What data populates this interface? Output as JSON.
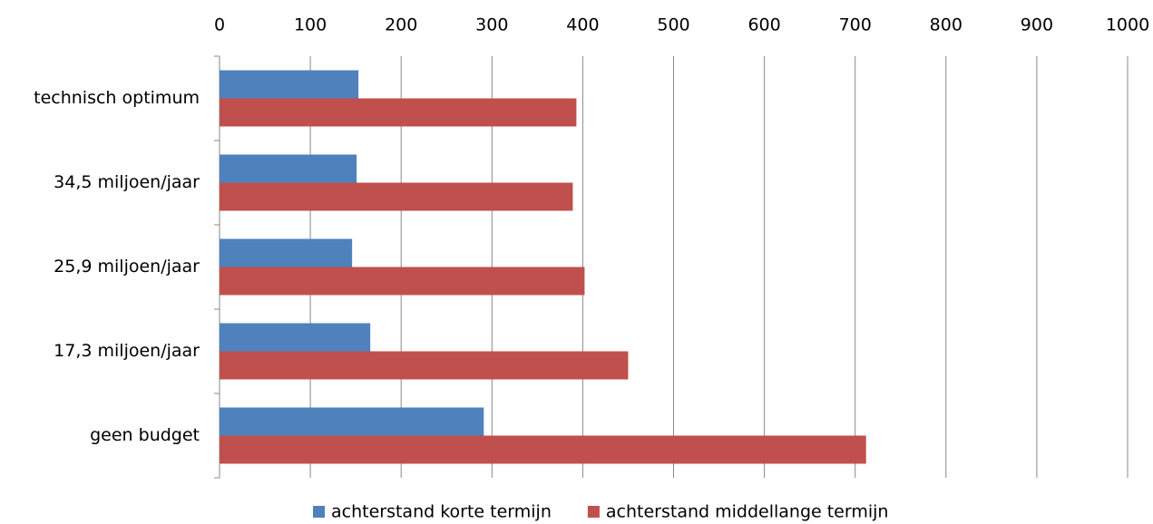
{
  "chart_data": {
    "type": "hbar",
    "categories": [
      "technisch optimum",
      "34,5 miljoen/jaar",
      "25,9 miljoen/jaar",
      "17,3 miljoen/jaar",
      "geen budget"
    ],
    "series": [
      {
        "name": "achterstand korte termijn",
        "color": "#4f81bd",
        "values": [
          153,
          151,
          146,
          166,
          291
        ]
      },
      {
        "name": "achterstand middellange termijn",
        "color": "#c0504d",
        "values": [
          393,
          389,
          402,
          450,
          712
        ]
      }
    ],
    "xlim": [
      0,
      1000
    ],
    "xticks": [
      0,
      100,
      200,
      300,
      400,
      500,
      600,
      700,
      800,
      900,
      1000
    ],
    "grid": true,
    "legend": "bottom"
  }
}
